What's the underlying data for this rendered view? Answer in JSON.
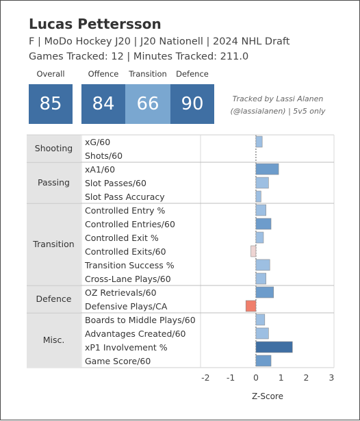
{
  "player": {
    "name": "Lucas Pettersson",
    "line1": "F | MoDo Hockey J20 | J20 Nationell | 2024 NHL Draft",
    "line2": "Games Tracked: 12 | Minutes Tracked: 211.0"
  },
  "ratings": [
    {
      "label": "Overall",
      "value": "85",
      "color": "#3f6fa3"
    },
    {
      "label": "Offence",
      "value": "84",
      "color": "#3f6fa3"
    },
    {
      "label": "Transition",
      "value": "66",
      "color": "#7aa7d0"
    },
    {
      "label": "Defence",
      "value": "90",
      "color": "#3f6fa3"
    }
  ],
  "note": {
    "line1": "Tracked by Lassi Alanen",
    "line2": "(@lassialanen) | 5v5 only"
  },
  "colors": {
    "positive_light": "#9dbfe2",
    "positive": "#6d9ccb",
    "positive_strong": "#3f6fa3",
    "negative_light": "#eed4d2",
    "negative": "#f07f6c"
  },
  "chart_data": {
    "type": "bar",
    "orientation": "horizontal",
    "xlabel": "Z-Score",
    "xlim": [
      -2.2,
      3.1
    ],
    "xticks": [
      -2,
      -1,
      0,
      1,
      2,
      3
    ],
    "xtick_labels": [
      "-2",
      "-1",
      "0",
      "1",
      "2",
      "3"
    ],
    "grid": "vertical",
    "groups": [
      {
        "name": "Shooting",
        "metrics": [
          "xG/60",
          "Shots/60"
        ]
      },
      {
        "name": "Passing",
        "metrics": [
          "xA1/60",
          "Slot Passes/60",
          "Slot Pass Accuracy"
        ]
      },
      {
        "name": "Transition",
        "metrics": [
          "Controlled Entry %",
          "Controlled Entries/60",
          "Controlled Exit %",
          "Controlled Exits/60",
          "Transition Success %",
          "Cross-Lane Plays/60"
        ]
      },
      {
        "name": "Defence",
        "metrics": [
          "OZ Retrievals/60",
          "Defensive Plays/CA"
        ]
      },
      {
        "name": "Misc.",
        "metrics": [
          "Boards to Middle Plays/60",
          "Advantages Created/60",
          "xP1 Involvement %",
          "Game Score/60"
        ]
      }
    ],
    "values": [
      0.25,
      null,
      0.9,
      0.5,
      0.2,
      0.4,
      0.6,
      0.3,
      -0.2,
      0.55,
      0.4,
      0.7,
      -0.4,
      0.35,
      0.5,
      1.45,
      0.6
    ]
  }
}
